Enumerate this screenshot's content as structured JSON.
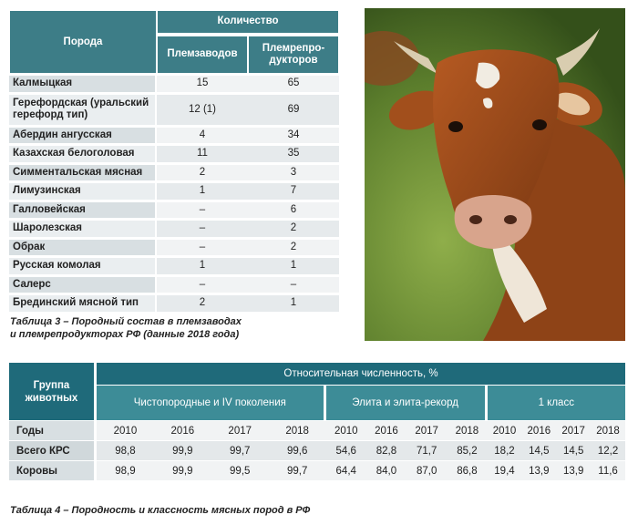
{
  "table3": {
    "header": {
      "breed": "Порода",
      "quantity": "Количество",
      "plemzavodov": "Племзаводов",
      "plemreproduktorov": "Племрепро-дукторов"
    },
    "rows": [
      {
        "breed": "Калмыцкая",
        "zavod": "15",
        "repro": "65"
      },
      {
        "breed": "Герефордская (уральский герефорд тип)",
        "zavod": "12 (1)",
        "repro": "69"
      },
      {
        "breed": "Абердин ангусская",
        "zavod": "4",
        "repro": "34"
      },
      {
        "breed": "Казахская белоголовая",
        "zavod": "11",
        "repro": "35"
      },
      {
        "breed": "Симментальская мясная",
        "zavod": "2",
        "repro": "3"
      },
      {
        "breed": "Лимузинская",
        "zavod": "1",
        "repro": "7"
      },
      {
        "breed": "Галловейская",
        "zavod": "–",
        "repro": "6"
      },
      {
        "breed": "Шаролезская",
        "zavod": "–",
        "repro": "2"
      },
      {
        "breed": "Обрак",
        "zavod": "–",
        "repro": "2"
      },
      {
        "breed": "Русская комолая",
        "zavod": "1",
        "repro": "1"
      },
      {
        "breed": "Салерс",
        "zavod": "–",
        "repro": "–"
      },
      {
        "breed": "Брединский мясной тип",
        "zavod": "2",
        "repro": "1"
      }
    ],
    "caption_line1": "Таблица 3 – Породный состав в племзаводах",
    "caption_line2": "и племрепродукторах РФ (данные 2018 года)"
  },
  "photo": {
    "icon": "cow-photo"
  },
  "table4": {
    "group_header": "Группа животных",
    "rel_header": "Относительная численность, %",
    "categories": [
      "Чистопородные и IV поколения",
      "Элита и элита-рекорд",
      "1 класс"
    ],
    "years_label": "Годы",
    "years": [
      "2010",
      "2016",
      "2017",
      "2018",
      "2010",
      "2016",
      "2017",
      "2018",
      "2010",
      "2016",
      "2017",
      "2018"
    ],
    "rows": [
      {
        "label": "Всего КРС",
        "values": [
          "98,8",
          "99,9",
          "99,7",
          "99,6",
          "54,6",
          "82,8",
          "71,7",
          "85,2",
          "18,2",
          "14,5",
          "14,5",
          "12,2"
        ]
      },
      {
        "label": "Коровы",
        "values": [
          "98,9",
          "99,9",
          "99,5",
          "99,7",
          "64,4",
          "84,0",
          "87,0",
          "86,8",
          "19,4",
          "13,9",
          "13,9",
          "11,6"
        ]
      }
    ],
    "caption": "Таблица 4 – Породность и классность мясных пород в РФ"
  }
}
